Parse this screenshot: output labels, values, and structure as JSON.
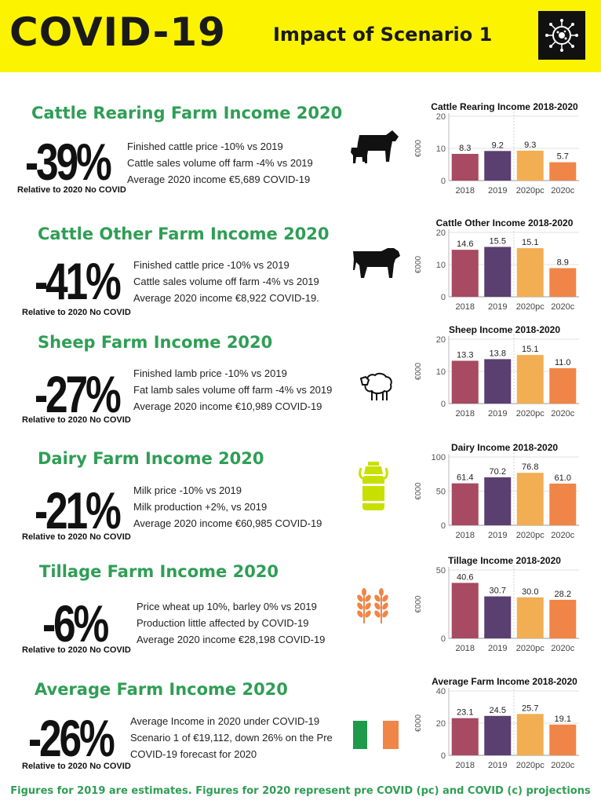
{
  "header": {
    "title": "COVID-19",
    "subtitle": "Impact of Scenario 1"
  },
  "colors": {
    "header_bg": "#fbf300",
    "title_green": "#2f9e55",
    "bar_2018": "#a74a62",
    "bar_2019": "#5a3f71",
    "bar_2020pc": "#f2ae53",
    "bar_2020c": "#f08548"
  },
  "sections": [
    {
      "title": "Cattle Rearing Farm Income 2020",
      "pct": "-39%",
      "relative": "Relative to 2020 No COVID",
      "icon": "cow-calf-icon",
      "bullets": [
        "Finished cattle price -10% vs 2019",
        "Cattle sales volume off farm -4% vs 2019",
        "Average 2020 income €5,689 COVID-19"
      ]
    },
    {
      "title": "Cattle Other Farm Income 2020",
      "pct": "-41%",
      "relative": "Relative to 2020 No COVID",
      "icon": "bull-icon",
      "bullets": [
        "Finished cattle price -10% vs 2019",
        "Cattle sales volume off farm -4% vs 2019",
        "Average 2020 income €8,922 COVID-19."
      ]
    },
    {
      "title": "Sheep Farm Income 2020",
      "pct": "-27%",
      "relative": "Relative to 2020 No COVID",
      "icon": "sheep-icon",
      "bullets": [
        "Finished lamb price -10% vs 2019",
        "Fat lamb sales volume off farm -4% vs 2019",
        "Average 2020 income €10,989 COVID-19"
      ]
    },
    {
      "title": "Dairy Farm Income 2020",
      "pct": "-21%",
      "relative": "Relative to 2020 No COVID",
      "icon": "milk-churn-icon",
      "bullets": [
        "Milk price -10% vs 2019",
        "Milk production +2%, vs 2019",
        "Average 2020 income €60,985 COVID-19"
      ]
    },
    {
      "title": "Tillage Farm Income 2020",
      "pct": "-6%",
      "relative": "Relative to 2020 No COVID",
      "icon": "wheat-icon",
      "bullets": [
        "Price wheat up 10%, barley 0% vs 2019",
        "Production little affected by COVID-19",
        "Average 2020 income €28,198 COVID-19"
      ]
    },
    {
      "title": "Average Farm Income 2020",
      "pct": "-26%",
      "relative": "Relative to 2020 No COVID",
      "icon": "irish-flag-icon",
      "bullets": [
        "Average Income in 2020 under COVID-19",
        "Scenario 1 of €19,112, down 26% on the Pre",
        "COVID-19 forecast for 2020"
      ]
    }
  ],
  "chart_data": [
    {
      "type": "bar",
      "title": "Cattle Rearing Income 2018-2020",
      "ylabel": "€000",
      "categories": [
        "2018",
        "2019",
        "2020pc",
        "2020c"
      ],
      "values": [
        8.3,
        9.2,
        9.3,
        5.7
      ],
      "labels": [
        "8.3",
        "9.2",
        "9.3",
        "5.7"
      ],
      "ylim": [
        0,
        20
      ],
      "yticks": [
        "0",
        "10",
        "20"
      ]
    },
    {
      "type": "bar",
      "title": "Cattle Other Income 2018-2020",
      "ylabel": "€000",
      "categories": [
        "2018",
        "2019",
        "2020pc",
        "2020c"
      ],
      "values": [
        14.6,
        15.5,
        15.1,
        8.9
      ],
      "labels": [
        "14.6",
        "15.5",
        "15.1",
        "8.9"
      ],
      "ylim": [
        0,
        20
      ],
      "yticks": [
        "0",
        "10",
        "20"
      ]
    },
    {
      "type": "bar",
      "title": "Sheep Income 2018-2020",
      "ylabel": "€000",
      "categories": [
        "2018",
        "2019",
        "2020pc",
        "2020c"
      ],
      "values": [
        13.3,
        13.8,
        15.1,
        11.0
      ],
      "labels": [
        "13.3",
        "13.8",
        "15.1",
        "11.0"
      ],
      "ylim": [
        0,
        20
      ],
      "yticks": [
        "0",
        "10",
        "20"
      ]
    },
    {
      "type": "bar",
      "title": "Dairy Income 2018-2020",
      "ylabel": "€000",
      "categories": [
        "2018",
        "2019",
        "2020pc",
        "2020c"
      ],
      "values": [
        61.4,
        70.2,
        76.8,
        61.0
      ],
      "labels": [
        "61.4",
        "70.2",
        "76.8",
        "61.0"
      ],
      "ylim": [
        0,
        100
      ],
      "yticks": [
        "0",
        "50",
        "100"
      ]
    },
    {
      "type": "bar",
      "title": "Tillage Income 2018-2020",
      "ylabel": "€000",
      "categories": [
        "2018",
        "2019",
        "2020pc",
        "2020c"
      ],
      "values": [
        40.6,
        30.7,
        30.0,
        28.2
      ],
      "labels": [
        "40.6",
        "30.7",
        "30.0",
        "28.2"
      ],
      "ylim": [
        0,
        50
      ],
      "yticks": [
        "0",
        "50"
      ]
    },
    {
      "type": "bar",
      "title": "Average Farm Income 2018-2020",
      "ylabel": "€000",
      "categories": [
        "2018",
        "2019",
        "2020pc",
        "2020c"
      ],
      "values": [
        23.1,
        24.5,
        25.7,
        19.1
      ],
      "labels": [
        "23.1",
        "24.5",
        "25.7",
        "19.1"
      ],
      "ylim": [
        0,
        40
      ],
      "yticks": [
        "0",
        "20",
        "40"
      ]
    }
  ],
  "footer": "Figures for 2019 are estimates. Figures for 2020 represent pre COVID (pc) and COVID (c) projections"
}
